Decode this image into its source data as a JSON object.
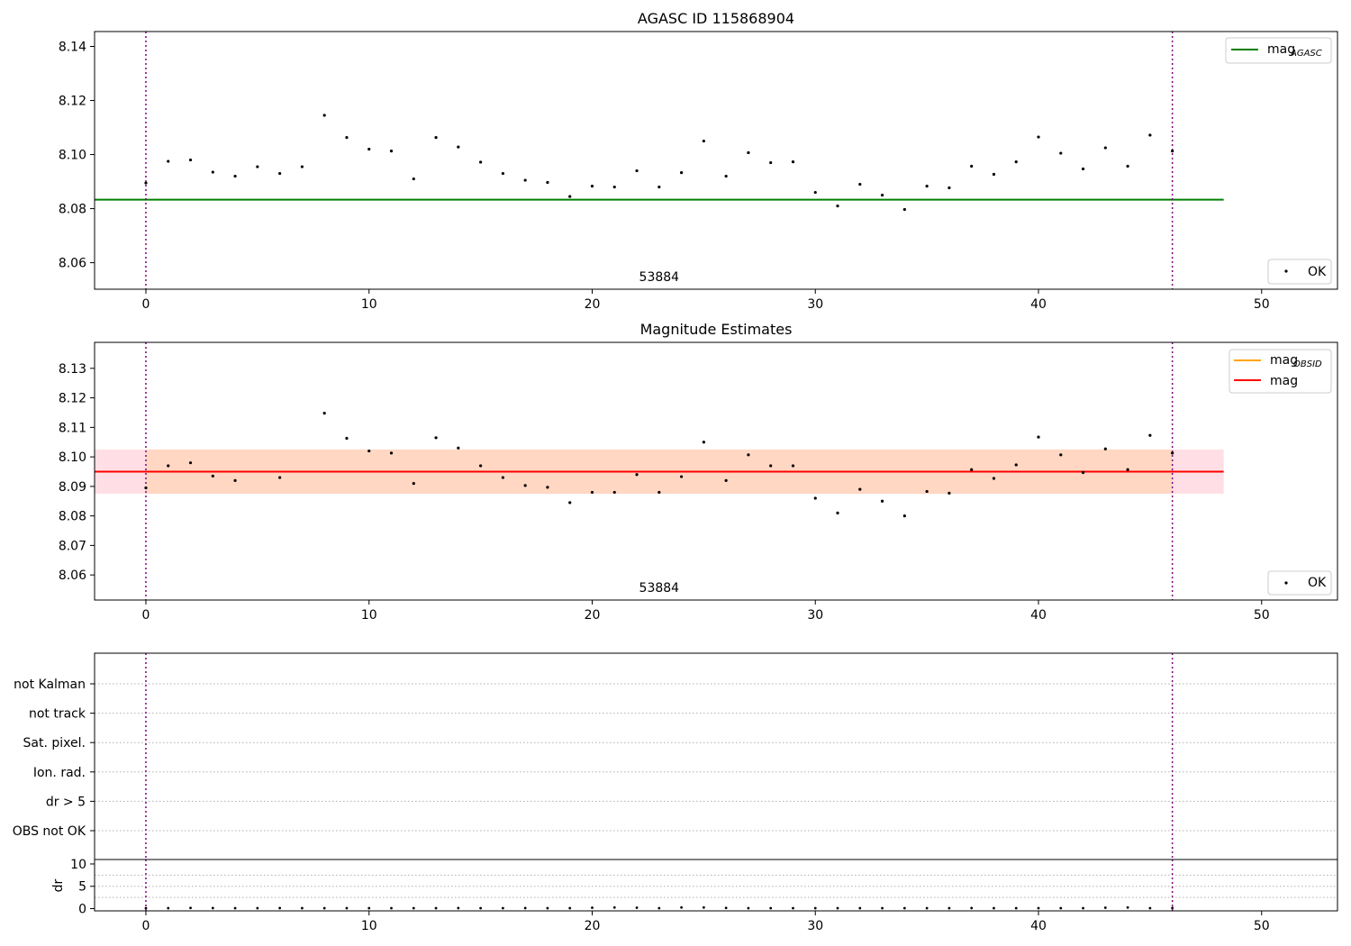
{
  "chart_data": [
    {
      "type": "scatter",
      "title": "AGASC ID 115868904",
      "xlim": [
        -2.3,
        53.4
      ],
      "ylim": [
        8.0502,
        8.1455
      ],
      "xticks": [
        0,
        10,
        20,
        30,
        40,
        50
      ],
      "yticks": [
        8.06,
        8.08,
        8.1,
        8.12,
        8.14
      ],
      "ytick_labels": [
        "8.06",
        "8.08",
        "8.10",
        "8.12",
        "8.14"
      ],
      "vlines": [
        0,
        46
      ],
      "obsid_label": {
        "text": "53884",
        "x": 23
      },
      "hline": {
        "name": "mag",
        "name_sub": "AGASC",
        "y": 8.0833,
        "x_range": [
          -2.3,
          48.3
        ],
        "color": "#008000"
      },
      "series": [
        {
          "name": "OK",
          "x": [
            0,
            1,
            2,
            3,
            4,
            5,
            6,
            7,
            8,
            9,
            10,
            11,
            12,
            13,
            14,
            15,
            16,
            17,
            18,
            19,
            20,
            21,
            22,
            23,
            24,
            25,
            26,
            27,
            28,
            29,
            30,
            31,
            32,
            33,
            34,
            35,
            36,
            37,
            38,
            39,
            40,
            41,
            42,
            43,
            44,
            45,
            46
          ],
          "y": [
            8.0895,
            8.0975,
            8.098,
            8.0935,
            8.092,
            8.0955,
            8.093,
            8.0955,
            8.1145,
            8.1063,
            8.102,
            8.1013,
            8.091,
            8.1063,
            8.1028,
            8.0972,
            8.093,
            8.0905,
            8.0897,
            8.0845,
            8.0883,
            8.088,
            8.094,
            8.088,
            8.0933,
            8.105,
            8.092,
            8.1007,
            8.097,
            8.0973,
            8.086,
            8.081,
            8.089,
            8.085,
            8.0797,
            8.0883,
            8.0877,
            8.0957,
            8.0927,
            8.0973,
            8.1065,
            8.1005,
            8.0947,
            8.1025,
            8.0957,
            8.1072,
            8.1013
          ]
        }
      ],
      "legend_top": "upper right",
      "legend_bottom": "lower right"
    },
    {
      "type": "scatter",
      "title": "Magnitude Estimates",
      "xlim": [
        -2.3,
        53.4
      ],
      "ylim": [
        8.0515,
        8.1388
      ],
      "xticks": [
        0,
        10,
        20,
        30,
        40,
        50
      ],
      "yticks": [
        8.06,
        8.07,
        8.08,
        8.09,
        8.1,
        8.11,
        8.12,
        8.13
      ],
      "ytick_labels": [
        "8.06",
        "8.07",
        "8.08",
        "8.09",
        "8.10",
        "8.11",
        "8.12",
        "8.13"
      ],
      "vlines": [
        0,
        46
      ],
      "obsid_label": {
        "text": "53884",
        "x": 23
      },
      "band_outer": {
        "y0": 8.0875,
        "y1": 8.1025,
        "x_range": [
          -2.3,
          48.3
        ],
        "color": "#ffc0cb"
      },
      "band_inner": {
        "y0": 8.0875,
        "y1": 8.1025,
        "x_range": [
          0,
          46
        ],
        "color": "#ffd6bf"
      },
      "hlines": [
        {
          "name": "mag",
          "name_sub": "OBSID",
          "y": 8.095,
          "x_range": [
            0,
            46
          ],
          "color": "#ffa500"
        },
        {
          "name": "mag",
          "name_sub": "",
          "y": 8.095,
          "x_range": [
            -2.3,
            48.3
          ],
          "color": "#ff0000"
        }
      ],
      "series": [
        {
          "name": "OK",
          "x": [
            0,
            1,
            2,
            3,
            4,
            6,
            8,
            9,
            10,
            11,
            12,
            13,
            14,
            15,
            16,
            17,
            18,
            19,
            20,
            21,
            22,
            23,
            24,
            25,
            26,
            27,
            28,
            29,
            30,
            31,
            32,
            33,
            34,
            35,
            36,
            37,
            38,
            39,
            40,
            41,
            42,
            43,
            44,
            45,
            46
          ],
          "y": [
            8.0895,
            8.097,
            8.098,
            8.0935,
            8.092,
            8.093,
            8.1148,
            8.1063,
            8.102,
            8.1013,
            8.091,
            8.1065,
            8.103,
            8.097,
            8.093,
            8.0903,
            8.0897,
            8.0845,
            8.088,
            8.088,
            8.094,
            8.088,
            8.0933,
            8.105,
            8.092,
            8.1007,
            8.097,
            8.097,
            8.086,
            8.081,
            8.089,
            8.085,
            8.08,
            8.0883,
            8.0877,
            8.0957,
            8.0927,
            8.0973,
            8.1067,
            8.1007,
            8.0947,
            8.1027,
            8.0957,
            8.1073,
            8.1013
          ]
        }
      ],
      "legend_top": "upper right",
      "legend_bottom": "lower right"
    },
    {
      "type": "scatter",
      "title": "",
      "categories": [
        "not Kalman",
        "not track",
        "Sat. pixel.",
        "Ion. rad.",
        "dr > 5",
        "OBS not OK"
      ],
      "xlim": [
        -2.3,
        53.4
      ],
      "xticks": [
        0,
        10,
        20,
        30,
        40,
        50
      ],
      "vlines": [
        0,
        46
      ],
      "dr_panel": {
        "ylabel": "dr",
        "ylim": [
          -0.5,
          11
        ],
        "yticks": [
          0,
          5,
          10
        ],
        "ytick_labels": [
          "0",
          "5",
          "10"
        ],
        "x": [
          0,
          1,
          2,
          3,
          4,
          5,
          6,
          7,
          8,
          9,
          10,
          11,
          12,
          13,
          14,
          15,
          16,
          17,
          18,
          19,
          20,
          21,
          22,
          23,
          24,
          25,
          26,
          27,
          28,
          29,
          30,
          31,
          32,
          33,
          34,
          35,
          36,
          37,
          38,
          39,
          40,
          41,
          42,
          43,
          44,
          45,
          46
        ],
        "y": [
          0.1,
          0.1,
          0.15,
          0.12,
          0.1,
          0.1,
          0.12,
          0.1,
          0.1,
          0.1,
          0.1,
          0.1,
          0.1,
          0.1,
          0.12,
          0.1,
          0.1,
          0.12,
          0.1,
          0.1,
          0.2,
          0.25,
          0.2,
          0.1,
          0.25,
          0.25,
          0.15,
          0.1,
          0.1,
          0.1,
          0.1,
          0.1,
          0.1,
          0.1,
          0.1,
          0.1,
          0.1,
          0.12,
          0.1,
          0.1,
          0.1,
          0.1,
          0.1,
          0.2,
          0.25,
          0.1,
          0.15
        ]
      }
    }
  ]
}
